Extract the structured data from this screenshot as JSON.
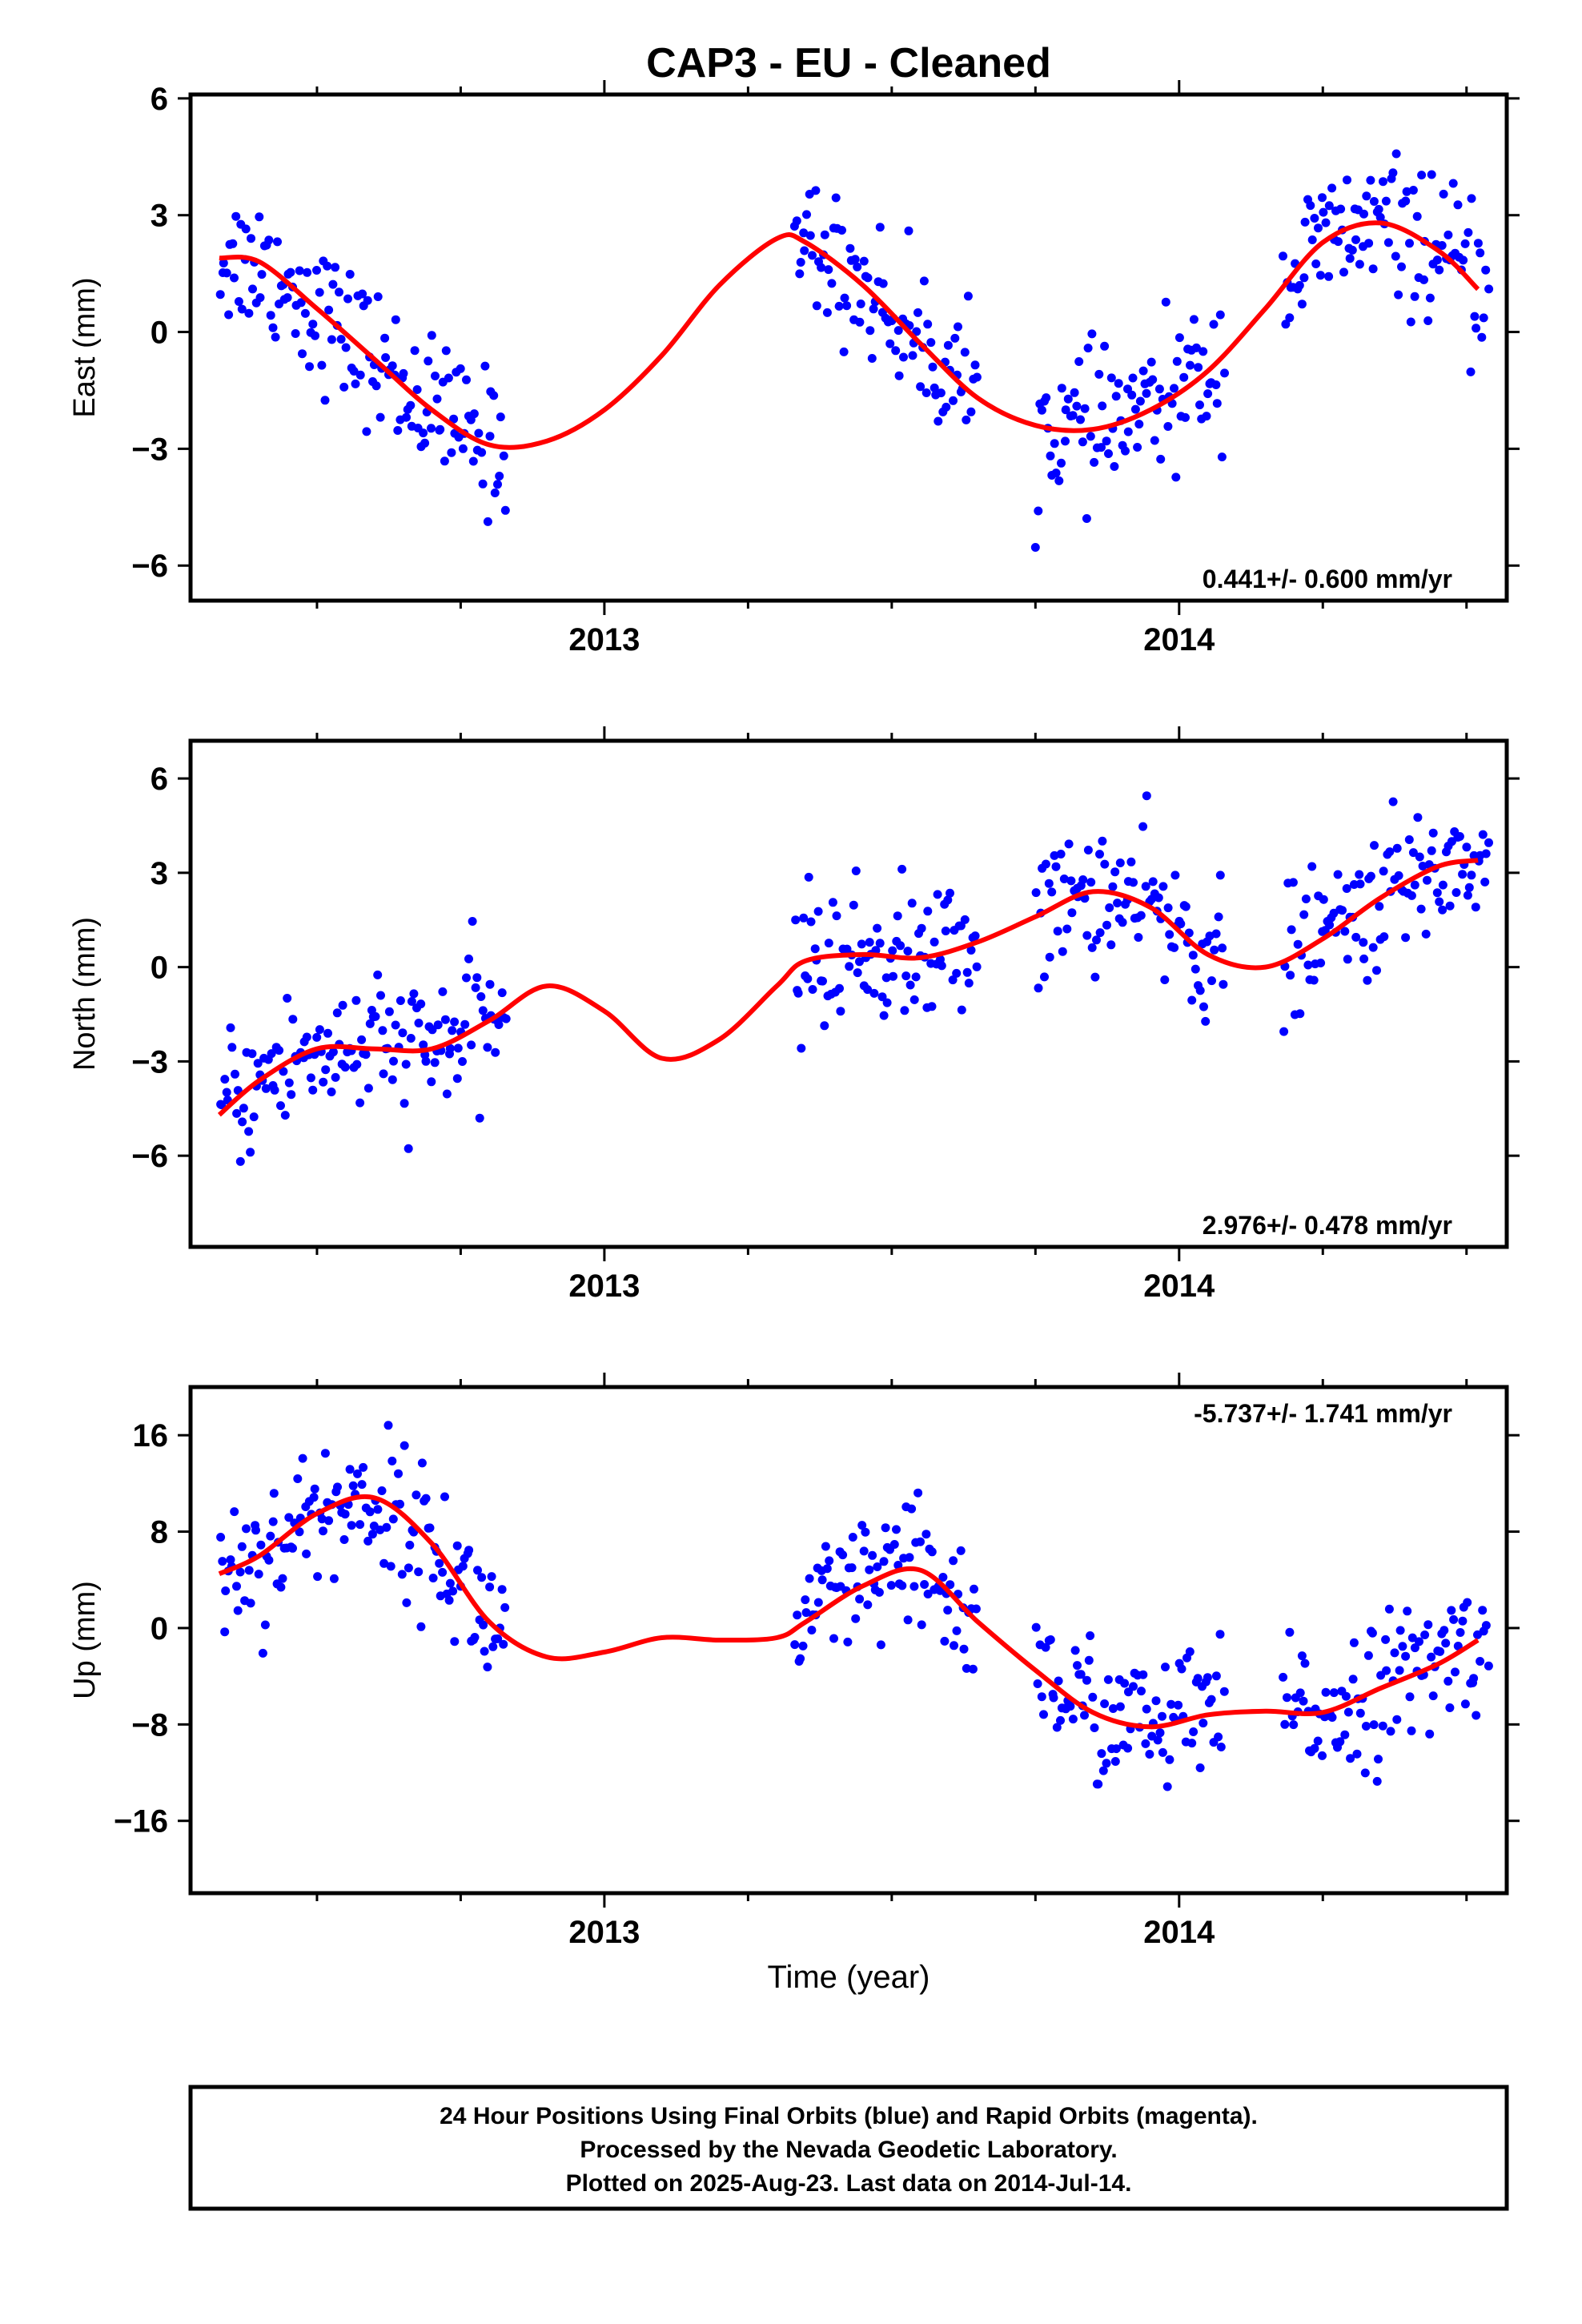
{
  "title": "CAP3  - EU - Cleaned",
  "xlabel": "Time (year)",
  "footer": {
    "line1": "24 Hour Positions Using Final Orbits (blue) and Rapid Orbits (magenta).",
    "line2": "Processed by the Nevada Geodetic Laboratory.",
    "line3": "Plotted on 2025-Aug-23. Last data on 2014-Jul-14."
  },
  "colors": {
    "points": "#0000ff",
    "fit": "#ff0000",
    "frame": "#000000"
  },
  "chart_data": [
    {
      "type": "scatter",
      "ylabel": "East (mm)",
      "rate_text": "0.441+/- 0.600 mm/yr",
      "rate_position": "bottom-right",
      "xlim": [
        2012.28,
        2014.57
      ],
      "ylim": [
        -6.9,
        6.1
      ],
      "xticks": [
        2013,
        2014
      ],
      "xminor": [
        2012.25,
        2012.5,
        2012.75,
        2013.25,
        2013.5,
        2013.75,
        2014.25,
        2014.5
      ],
      "yticks": [
        6,
        3,
        0,
        -3,
        -6
      ],
      "ytick_labels": [
        "6",
        "3",
        "0",
        "−3",
        "−6"
      ],
      "series": [
        {
          "role": "fit",
          "x": [
            2012.33,
            2012.4,
            2012.5,
            2012.6,
            2012.7,
            2012.8,
            2012.9,
            2013.0,
            2013.1,
            2013.2,
            2013.3,
            2013.35,
            2013.45,
            2013.55,
            2013.65,
            2013.75,
            2013.85,
            2013.95,
            2014.05,
            2014.15,
            2014.25,
            2014.35,
            2014.45,
            2014.52
          ],
          "y": [
            1.9,
            1.8,
            0.6,
            -0.7,
            -2.0,
            -2.9,
            -2.8,
            -2.0,
            -0.6,
            1.2,
            2.4,
            2.3,
            1.2,
            -0.3,
            -1.7,
            -2.4,
            -2.5,
            -2.0,
            -1.0,
            0.6,
            2.3,
            2.8,
            2.1,
            1.1
          ]
        }
      ],
      "segments": [
        {
          "x0": 2012.33,
          "x1": 2012.83,
          "x_noise": [
            1.3,
            -0.9
          ]
        },
        {
          "x0": 2013.33,
          "x1": 2013.65,
          "x_noise": [
            1.2,
            -1.1
          ]
        },
        {
          "x0": 2013.75,
          "x1": 2014.08,
          "x_noise": [
            1.4,
            -1.0
          ]
        },
        {
          "x0": 2014.18,
          "x1": 2014.54,
          "x_noise": [
            1.3,
            -1.2
          ]
        }
      ]
    },
    {
      "type": "scatter",
      "ylabel": "North (mm)",
      "rate_text": "2.976+/- 0.478 mm/yr",
      "rate_position": "bottom-right",
      "xlim": [
        2012.28,
        2014.57
      ],
      "ylim": [
        -8.9,
        7.2
      ],
      "xticks": [
        2013,
        2014
      ],
      "xminor": [
        2012.25,
        2012.5,
        2012.75,
        2013.25,
        2013.5,
        2013.75,
        2014.25,
        2014.5
      ],
      "yticks": [
        6,
        3,
        0,
        -3,
        -6
      ],
      "ytick_labels": [
        "6",
        "3",
        "0",
        "−3",
        "−6"
      ],
      "series": [
        {
          "role": "fit",
          "x": [
            2012.33,
            2012.4,
            2012.5,
            2012.6,
            2012.7,
            2012.8,
            2012.9,
            2013.0,
            2013.1,
            2013.2,
            2013.3,
            2013.35,
            2013.45,
            2013.55,
            2013.65,
            2013.75,
            2013.85,
            2013.95,
            2014.05,
            2014.15,
            2014.25,
            2014.35,
            2014.45,
            2014.52
          ],
          "y": [
            -4.7,
            -3.6,
            -2.6,
            -2.6,
            -2.6,
            -1.7,
            -0.6,
            -1.4,
            -2.9,
            -2.3,
            -0.6,
            0.2,
            0.4,
            0.3,
            0.8,
            1.6,
            2.4,
            1.9,
            0.4,
            0.0,
            0.9,
            2.2,
            3.2,
            3.4
          ]
        }
      ],
      "segments": [
        {
          "x0": 2012.33,
          "x1": 2012.83,
          "x_noise": [
            1.6,
            -1.4
          ]
        },
        {
          "x0": 2013.33,
          "x1": 2013.65,
          "x_noise": [
            1.5,
            -1.3
          ]
        },
        {
          "x0": 2013.75,
          "x1": 2014.08,
          "x_noise": [
            1.6,
            -1.4
          ]
        },
        {
          "x0": 2014.18,
          "x1": 2014.54,
          "x_noise": [
            1.5,
            -1.3
          ]
        }
      ]
    },
    {
      "type": "scatter",
      "ylabel": "Up (mm)",
      "rate_text": "-5.737+/- 1.741 mm/yr",
      "rate_position": "top-right",
      "xlim": [
        2012.28,
        2014.57
      ],
      "ylim": [
        -22,
        20
      ],
      "xticks": [
        2013,
        2014
      ],
      "xminor": [
        2012.25,
        2012.5,
        2012.75,
        2013.25,
        2013.5,
        2013.75,
        2014.25,
        2014.5
      ],
      "yticks": [
        16,
        8,
        0,
        -8,
        -16
      ],
      "ytick_labels": [
        "16",
        "8",
        "0",
        "−8",
        "−16"
      ],
      "series": [
        {
          "role": "fit",
          "x": [
            2012.33,
            2012.4,
            2012.5,
            2012.6,
            2012.7,
            2012.8,
            2012.9,
            2013.0,
            2013.1,
            2013.2,
            2013.3,
            2013.35,
            2013.45,
            2013.55,
            2013.65,
            2013.75,
            2013.85,
            2013.95,
            2014.05,
            2014.15,
            2014.25,
            2014.35,
            2014.45,
            2014.52
          ],
          "y": [
            4.5,
            6.0,
            9.5,
            10.8,
            7.0,
            0.5,
            -2.4,
            -2.0,
            -0.8,
            -1.0,
            -0.8,
            0.5,
            3.5,
            4.8,
            0.5,
            -3.5,
            -7.0,
            -8.2,
            -7.2,
            -6.9,
            -7.0,
            -5.0,
            -3.0,
            -1.0
          ]
        }
      ],
      "segments": [
        {
          "x0": 2012.33,
          "x1": 2012.83,
          "x_noise": [
            4.5,
            -3.8
          ]
        },
        {
          "x0": 2013.33,
          "x1": 2013.65,
          "x_noise": [
            4.2,
            -4.0
          ]
        },
        {
          "x0": 2013.75,
          "x1": 2014.08,
          "x_noise": [
            5.0,
            -5.5
          ]
        },
        {
          "x0": 2014.18,
          "x1": 2014.54,
          "x_noise": [
            4.5,
            -4.2
          ]
        }
      ]
    }
  ]
}
